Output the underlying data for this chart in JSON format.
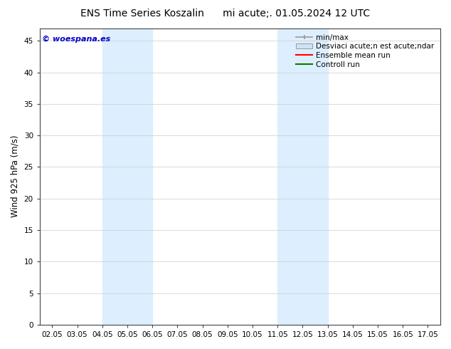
{
  "title_left": "ENS Time Series Koszalin",
  "title_right": "mi acute;. 01.05.2024 12 UTC",
  "ylabel": "Wind 925 hPa (m/s)",
  "ylim": [
    0,
    47
  ],
  "yticks": [
    0,
    5,
    10,
    15,
    20,
    25,
    30,
    35,
    40,
    45
  ],
  "xtick_labels": [
    "02.05",
    "03.05",
    "04.05",
    "05.05",
    "06.05",
    "07.05",
    "08.05",
    "09.05",
    "10.05",
    "11.05",
    "12.05",
    "13.05",
    "14.05",
    "15.05",
    "16.05",
    "17.05"
  ],
  "xtick_positions": [
    2,
    3,
    4,
    5,
    6,
    7,
    8,
    9,
    10,
    11,
    12,
    13,
    14,
    15,
    16,
    17
  ],
  "xlim": [
    1.5,
    17.5
  ],
  "shaded_bands": [
    {
      "x_start": 4.0,
      "x_end": 6.0,
      "color": "#ddeeff"
    },
    {
      "x_start": 11.0,
      "x_end": 13.0,
      "color": "#ddeeff"
    }
  ],
  "watermark_text": "© woespana.es",
  "watermark_color": "#0000cc",
  "watermark_fontsize": 8,
  "legend_line1": "min/max",
  "legend_line2": "Desviaci acute;n est acute;ndar",
  "legend_line3": "Ensemble mean run",
  "legend_line4": "Controll run",
  "minmax_color": "#999999",
  "desv_color": "#cce4f5",
  "ensemble_color": "red",
  "control_color": "green",
  "bg_color": "#ffffff",
  "plot_bg_color": "#ffffff",
  "tick_fontsize": 7.5,
  "ylabel_fontsize": 8.5,
  "title_fontsize": 10,
  "legend_fontsize": 7.5
}
